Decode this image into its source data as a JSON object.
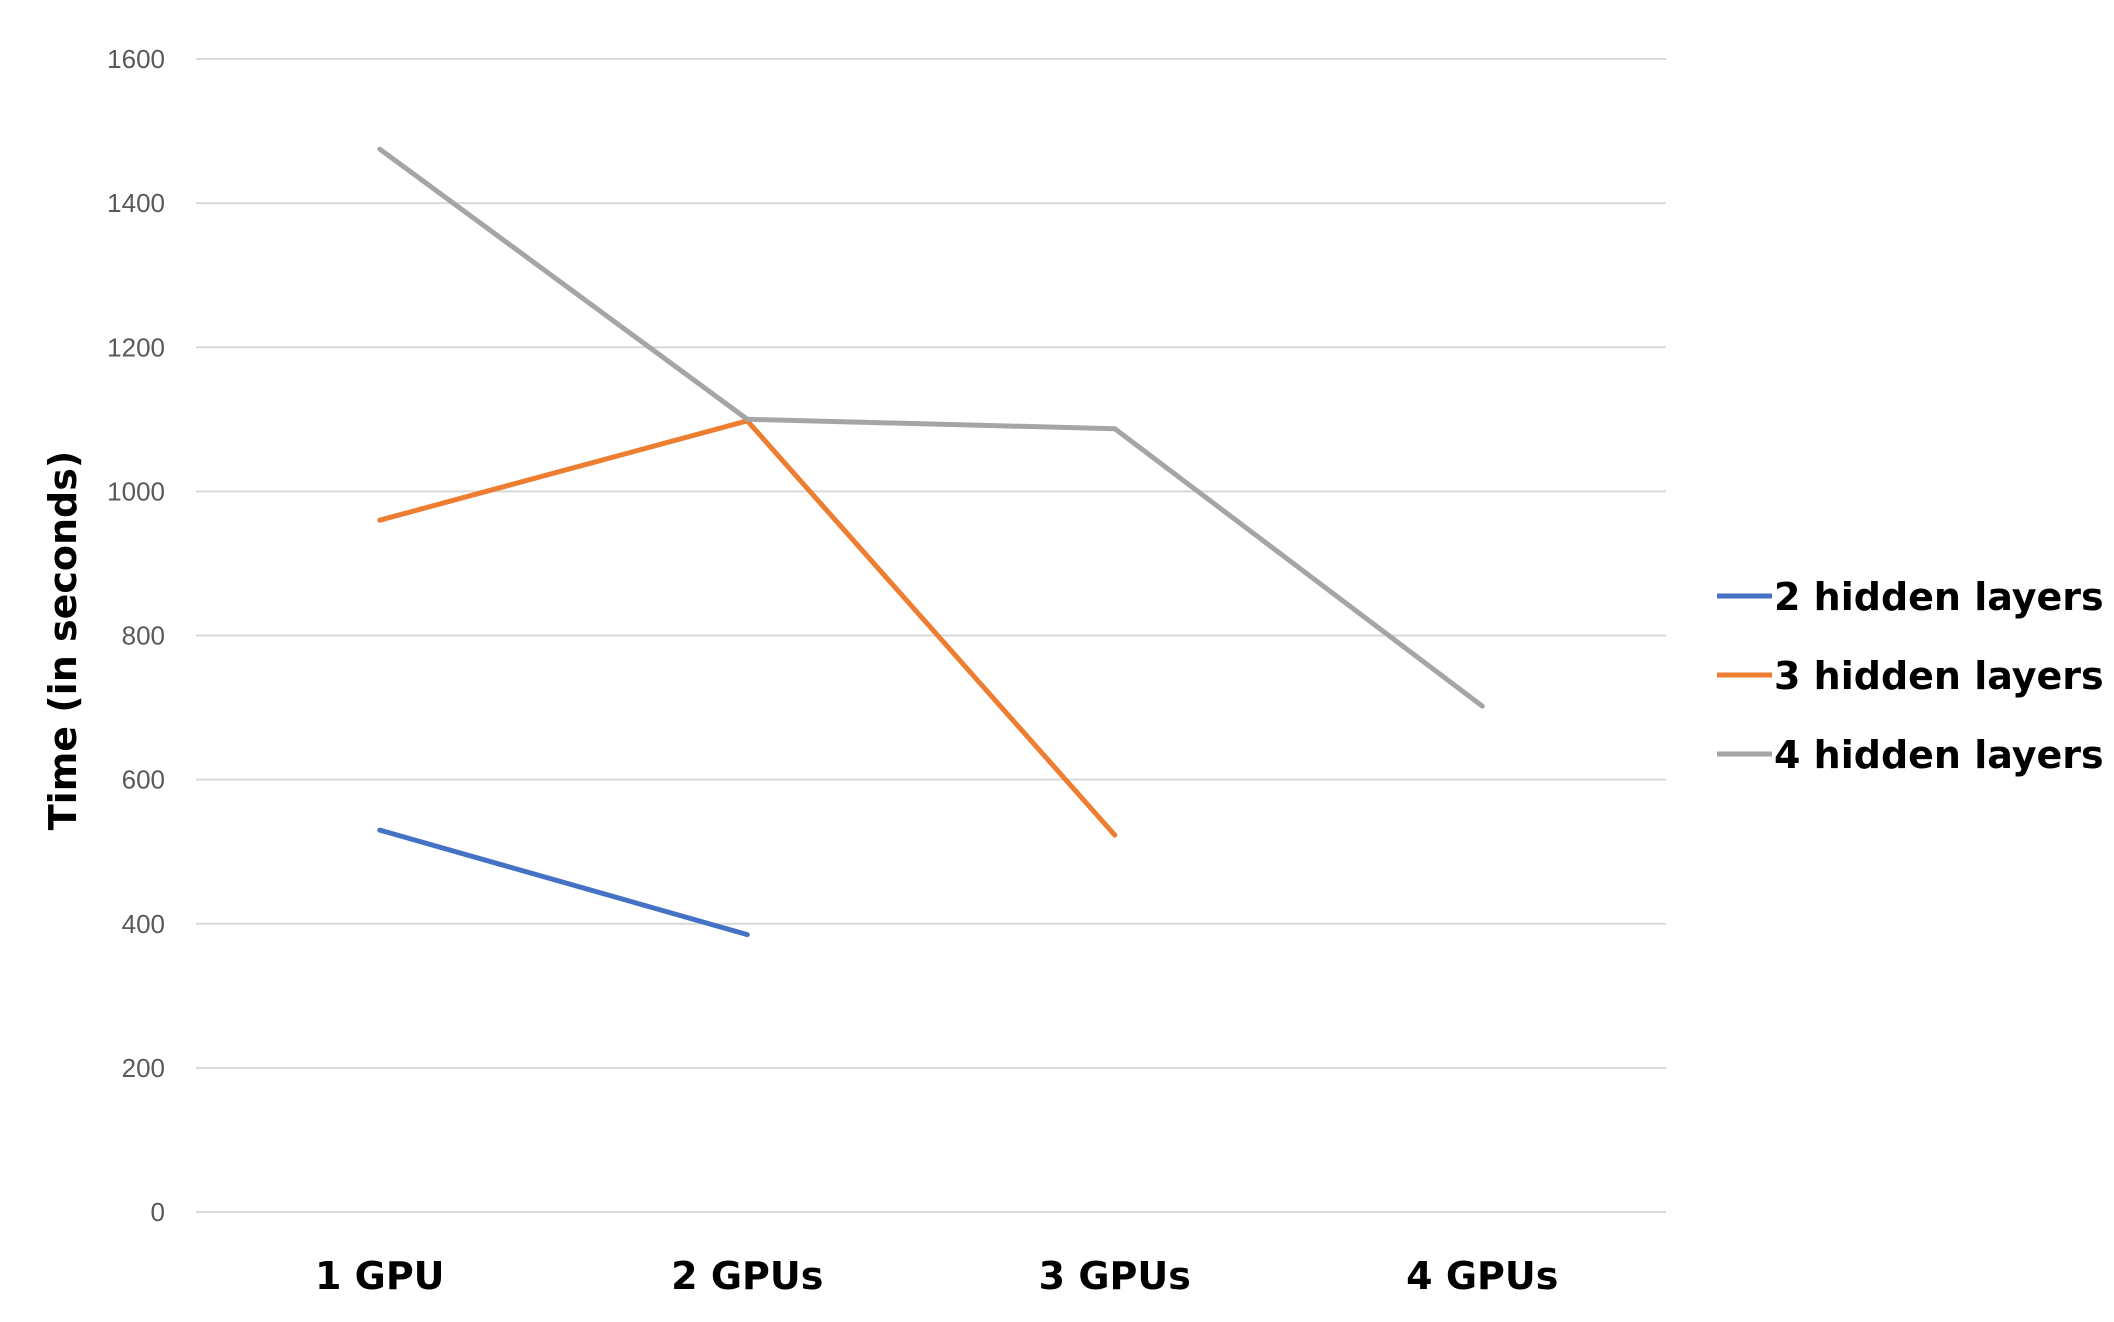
{
  "chart_data": {
    "type": "line",
    "categories": [
      "1 GPU",
      "2 GPUs",
      "3 GPUs",
      "4 GPUs"
    ],
    "series": [
      {
        "name": "2 hidden layers",
        "color": "#4472C4",
        "values": [
          530,
          385,
          null,
          null
        ]
      },
      {
        "name": "3 hidden layers",
        "color": "#ED7D31",
        "values": [
          960,
          1098,
          523,
          null
        ]
      },
      {
        "name": "4 hidden layers",
        "color": "#A5A5A5",
        "values": [
          1475,
          1100,
          1087,
          702
        ]
      }
    ],
    "title": "",
    "xlabel": "",
    "ylabel": "Time (in seconds)",
    "ylim": [
      0,
      1600
    ],
    "yticks": [
      "0",
      "200",
      "400",
      "600",
      "800",
      "1000",
      "1200",
      "1400",
      "1600"
    ],
    "grid": true,
    "legend_position": "right",
    "gridline_color": "#D9D9D9"
  }
}
